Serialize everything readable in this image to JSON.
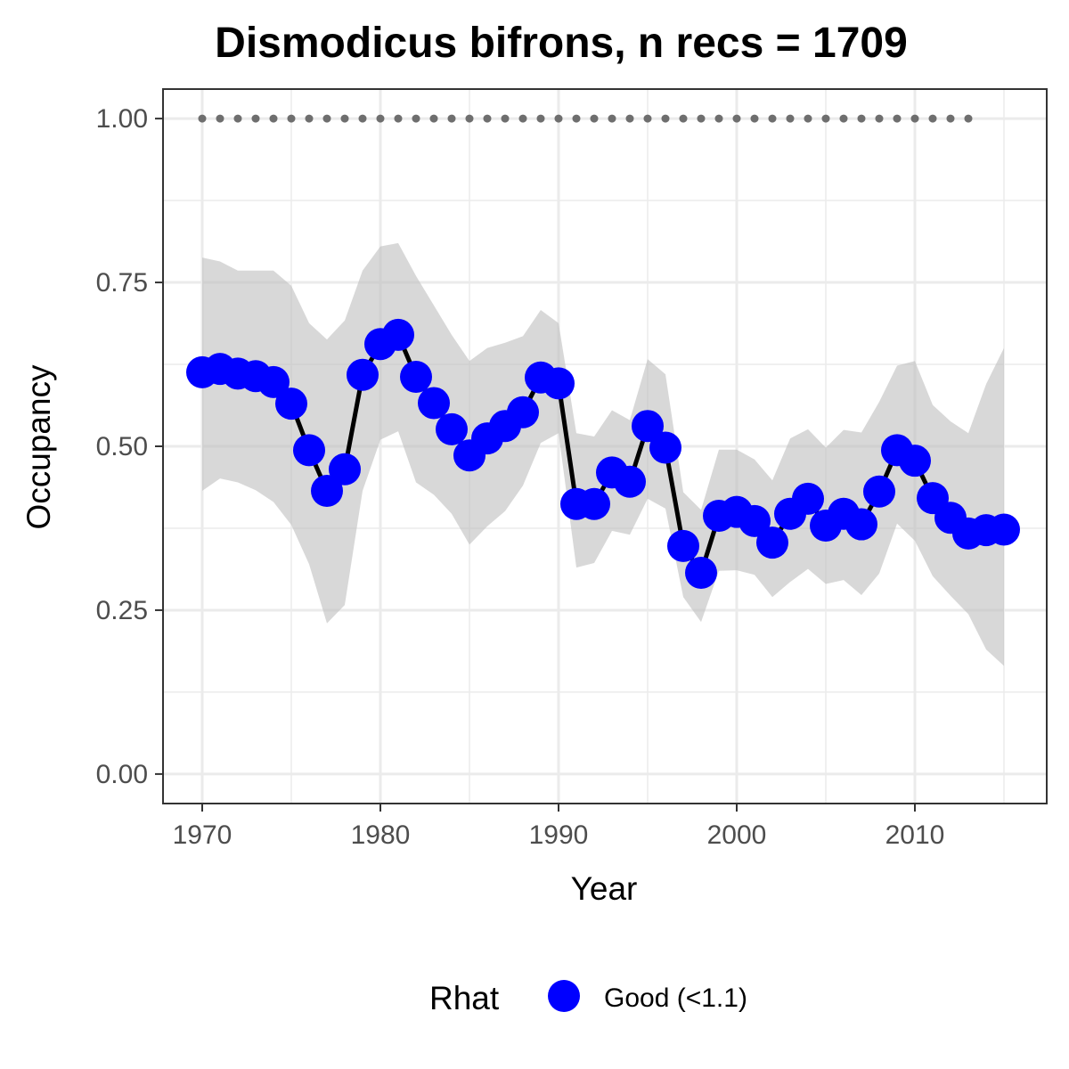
{
  "chart_data": {
    "type": "line",
    "title": "Dismodicus bifrons, n recs = 1709",
    "xlabel": "Year",
    "ylabel": "Occupancy",
    "xlim": [
      1967.8,
      1917.4
    ],
    "ylim": [
      -0.045,
      1.045
    ],
    "x_ticks": [
      1970,
      1980,
      1990,
      2000,
      2010
    ],
    "x_tick_labels": [
      "1970",
      "1980",
      "1990",
      "2000",
      "2010"
    ],
    "y_ticks": [
      0,
      0.25,
      0.5,
      0.75,
      1.0
    ],
    "y_tick_labels": [
      "0.00",
      "0.25",
      "0.50",
      "0.75",
      "1.00"
    ],
    "grid": true,
    "legend": {
      "position": "bottom",
      "title": "Rhat",
      "entries": [
        {
          "label": "Good (<1.1)",
          "color": "#0000ff"
        }
      ]
    },
    "colors": {
      "points": "#0000ff",
      "line": "#000000",
      "ribbon": "#bebebe",
      "dots": "#6e6e6e",
      "grid": "#ebebeb",
      "border": "#333333"
    },
    "series": [
      {
        "type": "line+points",
        "x": [
          1970,
          1971,
          1972,
          1973,
          1974,
          1975,
          1976,
          1977,
          1978,
          1979,
          1980,
          1981,
          1982,
          1983,
          1984,
          1985,
          1986,
          1987,
          1988,
          1989,
          1990,
          1991,
          1992,
          1993,
          1994,
          1995,
          1996,
          1997,
          1998,
          1999,
          2000,
          2001,
          2002,
          2003,
          2004,
          2005,
          2006,
          2007,
          2008,
          2009,
          2010,
          2011,
          2012,
          2013,
          2014,
          2015
        ],
        "y": [
          0.613,
          0.618,
          0.611,
          0.607,
          0.598,
          0.565,
          0.494,
          0.432,
          0.465,
          0.609,
          0.656,
          0.67,
          0.606,
          0.566,
          0.526,
          0.486,
          0.512,
          0.531,
          0.552,
          0.605,
          0.596,
          0.412,
          0.412,
          0.46,
          0.446,
          0.531,
          0.498,
          0.348,
          0.307,
          0.394,
          0.4,
          0.386,
          0.353,
          0.397,
          0.42,
          0.379,
          0.397,
          0.381,
          0.431,
          0.494,
          0.478,
          0.421,
          0.391,
          0.367,
          0.372,
          0.373
        ]
      },
      {
        "type": "ribbon",
        "x": [
          1970,
          1971,
          1972,
          1973,
          1974,
          1975,
          1976,
          1977,
          1978,
          1979,
          1980,
          1981,
          1982,
          1983,
          1984,
          1985,
          1986,
          1987,
          1988,
          1989,
          1990,
          1991,
          1992,
          1993,
          1994,
          1995,
          1996,
          1997,
          1998,
          1999,
          2000,
          2001,
          2002,
          2003,
          2004,
          2005,
          2006,
          2007,
          2008,
          2009,
          2010,
          2011,
          2012,
          2013,
          2014,
          2015
        ],
        "lower": [
          0.432,
          0.451,
          0.445,
          0.433,
          0.415,
          0.38,
          0.32,
          0.23,
          0.258,
          0.432,
          0.51,
          0.523,
          0.445,
          0.426,
          0.397,
          0.35,
          0.378,
          0.401,
          0.44,
          0.505,
          0.52,
          0.315,
          0.322,
          0.371,
          0.365,
          0.42,
          0.405,
          0.27,
          0.232,
          0.31,
          0.311,
          0.304,
          0.27,
          0.293,
          0.313,
          0.29,
          0.296,
          0.273,
          0.306,
          0.382,
          0.356,
          0.302,
          0.272,
          0.244,
          0.19,
          0.165
        ],
        "upper": [
          0.788,
          0.782,
          0.768,
          0.768,
          0.768,
          0.745,
          0.688,
          0.663,
          0.692,
          0.768,
          0.805,
          0.81,
          0.76,
          0.715,
          0.67,
          0.63,
          0.65,
          0.658,
          0.668,
          0.708,
          0.688,
          0.52,
          0.515,
          0.555,
          0.54,
          0.633,
          0.61,
          0.43,
          0.403,
          0.495,
          0.495,
          0.48,
          0.448,
          0.512,
          0.526,
          0.498,
          0.525,
          0.521,
          0.568,
          0.623,
          0.63,
          0.563,
          0.538,
          0.52,
          0.595,
          0.65
        ]
      },
      {
        "type": "dots",
        "x": [
          1970,
          1971,
          1972,
          1973,
          1974,
          1975,
          1976,
          1977,
          1978,
          1979,
          1980,
          1981,
          1982,
          1983,
          1984,
          1985,
          1986,
          1987,
          1988,
          1989,
          1990,
          1991,
          1992,
          1993,
          1994,
          1995,
          1996,
          1997,
          1998,
          1999,
          2000,
          2001,
          2002,
          2003,
          2004,
          2005,
          2006,
          2007,
          2008,
          2009,
          2010,
          2011,
          2012,
          2013
        ],
        "y": [
          1,
          1,
          1,
          1,
          1,
          1,
          1,
          1,
          1,
          1,
          1,
          1,
          1,
          1,
          1,
          1,
          1,
          1,
          1,
          1,
          1,
          1,
          1,
          1,
          1,
          1,
          1,
          1,
          1,
          1,
          1,
          1,
          1,
          1,
          1,
          1,
          1,
          1,
          1,
          1,
          1,
          1,
          1,
          1
        ]
      }
    ]
  }
}
